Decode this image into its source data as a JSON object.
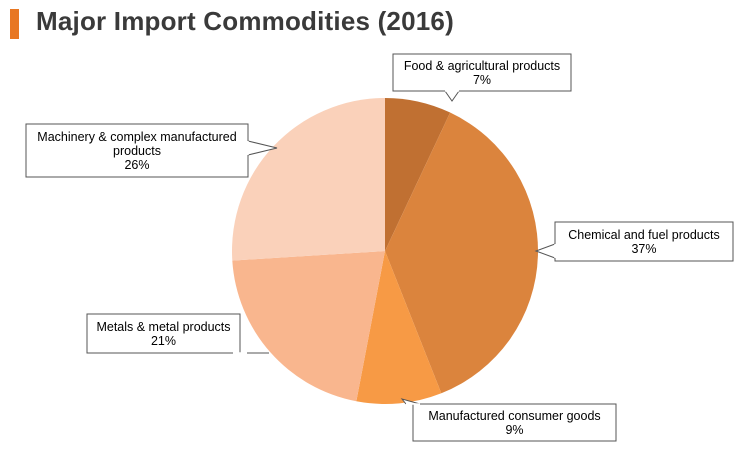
{
  "title": "Major Import Commodities (2016)",
  "colors": {
    "accent": "#E87722",
    "slices": [
      "#C07032",
      "#DB843D",
      "#F79A45",
      "#F9B68E",
      "#FAD1BA"
    ]
  },
  "chart_data": {
    "type": "pie",
    "title": "Major Import Commodities (2016)",
    "slices": [
      {
        "name": "Food & agricultural products",
        "value": 7,
        "label_lines": [
          "Food & agricultural products",
          "7%"
        ]
      },
      {
        "name": "Chemical and fuel products",
        "value": 37,
        "label_lines": [
          "Chemical and fuel products",
          "37%"
        ]
      },
      {
        "name": "Manufactured consumer goods",
        "value": 9,
        "label_lines": [
          "Manufactured consumer goods",
          "9%"
        ]
      },
      {
        "name": "Metals & metal products",
        "value": 21,
        "label_lines": [
          "Metals & metal products",
          "21%"
        ]
      },
      {
        "name": "Machinery & complex manufactured products",
        "value": 26,
        "label_lines": [
          "Machinery & complex manufactured",
          "products",
          "26%"
        ]
      }
    ]
  }
}
